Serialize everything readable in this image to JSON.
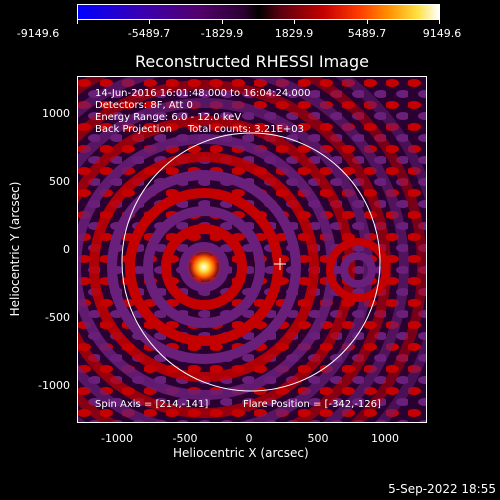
{
  "colorbar": {
    "tick_labels": [
      "-9149.6",
      "-5489.7",
      "-1829.9",
      "1829.9",
      "5489.7",
      "9149.6"
    ]
  },
  "plot": {
    "title": "Reconstructed RHESSI Image",
    "info_lines": [
      "14-Jun-2016 16:01:48.000 to 16:04:24.000",
      "Detectors: 8F, Att 0",
      "Energy Range: 6.0 - 12.0 keV",
      "Back Projection     Total counts: 3.21E+03"
    ],
    "spin_axis": "Spin Axis = [214,-141]",
    "flare_position": "Flare Position = [-342,-126]",
    "y_ticks": [
      "1000",
      "500",
      "0",
      "-500",
      "-1000"
    ],
    "x_ticks": [
      "-1000",
      "-500",
      "0",
      "500",
      "1000"
    ],
    "x_axis_title": "Heliocentric X (arcsec)",
    "y_axis_title": "Heliocentric Y (arcsec)"
  },
  "footer": {
    "date": "5-Sep-2022 18:55"
  }
}
